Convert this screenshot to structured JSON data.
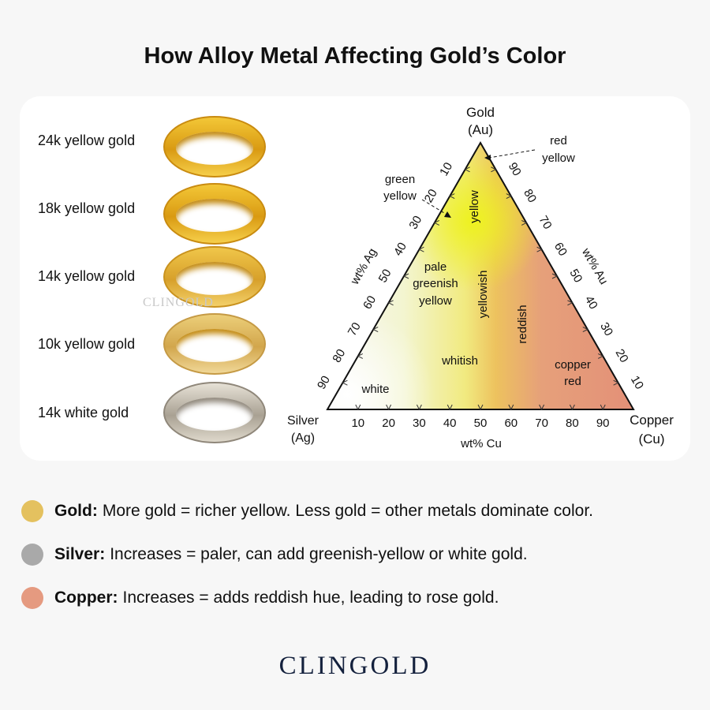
{
  "title": "How Alloy Metal Affecting Gold’s Color",
  "rings": [
    {
      "label": "24k yellow gold"
    },
    {
      "label": "18k yellow gold"
    },
    {
      "label": "14k yellow gold"
    },
    {
      "label": "10k yellow gold"
    },
    {
      "label": "14k white gold"
    }
  ],
  "watermark": "CLINGOLD",
  "diagram": {
    "top_vertex": [
      "Gold",
      "(Au)"
    ],
    "left_vertex": [
      "Silver",
      "(Ag)"
    ],
    "right_vertex": [
      "Copper",
      "(Cu)"
    ],
    "axis_ag": "wt% Ag",
    "axis_au": "wt% Au",
    "axis_cu": "wt% Cu",
    "ticks": [
      10,
      20,
      30,
      40,
      50,
      60,
      70,
      80,
      90
    ],
    "regions": {
      "red_yellow": [
        "red",
        "yellow"
      ],
      "green_yellow": [
        "green",
        "yellow"
      ],
      "yellow": "yellow",
      "pale": [
        "pale",
        "greenish",
        "yellow"
      ],
      "yellowish": "yellowish",
      "reddish": "reddish",
      "whitish": "whitish",
      "white": "white",
      "copper_red": [
        "copper",
        "red"
      ]
    }
  },
  "legend": [
    {
      "name": "Gold:",
      "text": "More gold = richer yellow. Less gold = other metals dominate color.",
      "color": "#e4c15f"
    },
    {
      "name": "Silver:",
      "text": "Increases = paler, can add greenish-yellow or white gold.",
      "color": "#a9a9a9"
    },
    {
      "name": "Copper:",
      "text": "Increases = adds reddish hue, leading to rose gold.",
      "color": "#e59a80"
    }
  ],
  "logo": "CLINGOLD"
}
